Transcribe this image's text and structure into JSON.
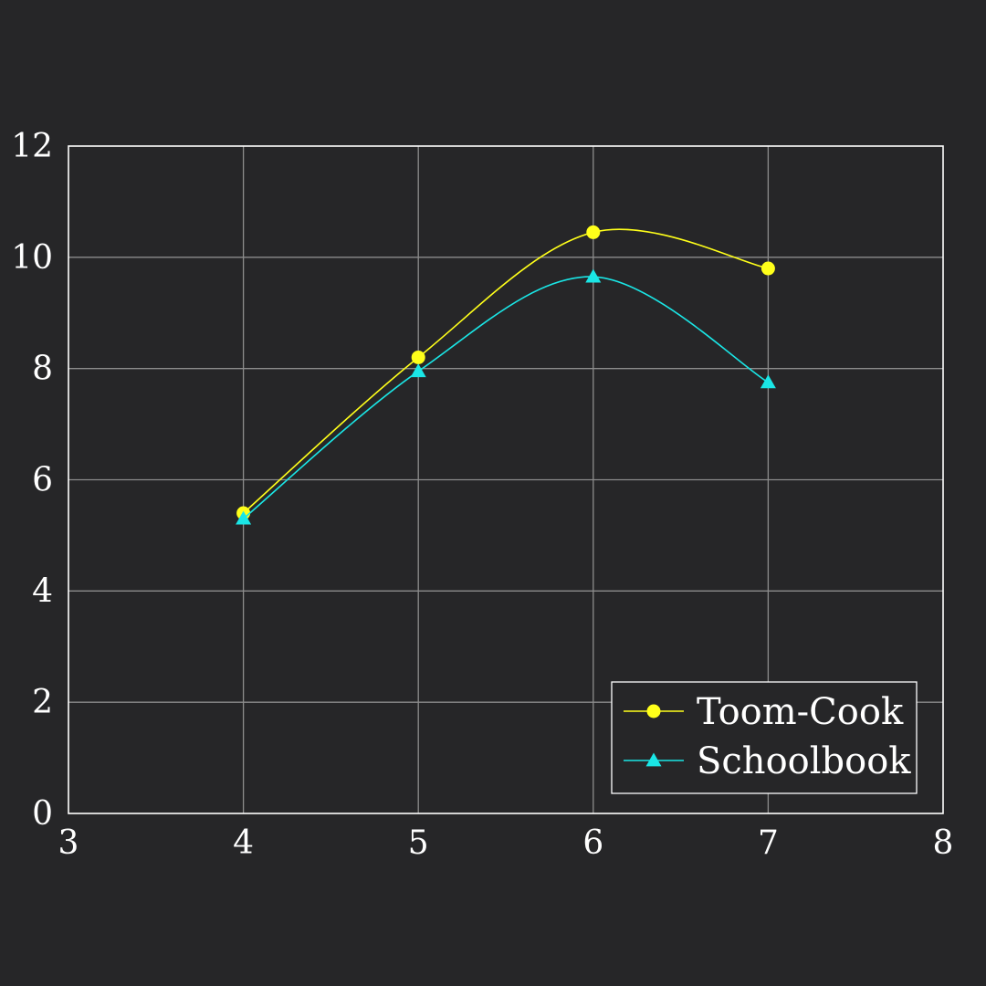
{
  "chart_data": {
    "type": "line",
    "title": "",
    "xlabel": "",
    "ylabel": "",
    "xlim": [
      3,
      8
    ],
    "ylim": [
      0,
      12
    ],
    "xticks": [
      3,
      4,
      5,
      6,
      7,
      8
    ],
    "yticks": [
      0,
      2,
      4,
      6,
      8,
      10,
      12
    ],
    "grid": true,
    "smooth": true,
    "legend_position": "bottom-right",
    "series": [
      {
        "name": "Toom-Cook",
        "marker": "circle",
        "color": "#ffff1a",
        "x": [
          4,
          5,
          6,
          7
        ],
        "y": [
          5.4,
          8.2,
          10.45,
          9.8
        ]
      },
      {
        "name": "Schoolbook",
        "marker": "triangle",
        "color": "#1ae6e6",
        "x": [
          4,
          5,
          6,
          7
        ],
        "y": [
          5.3,
          7.95,
          9.65,
          7.75
        ]
      }
    ]
  }
}
